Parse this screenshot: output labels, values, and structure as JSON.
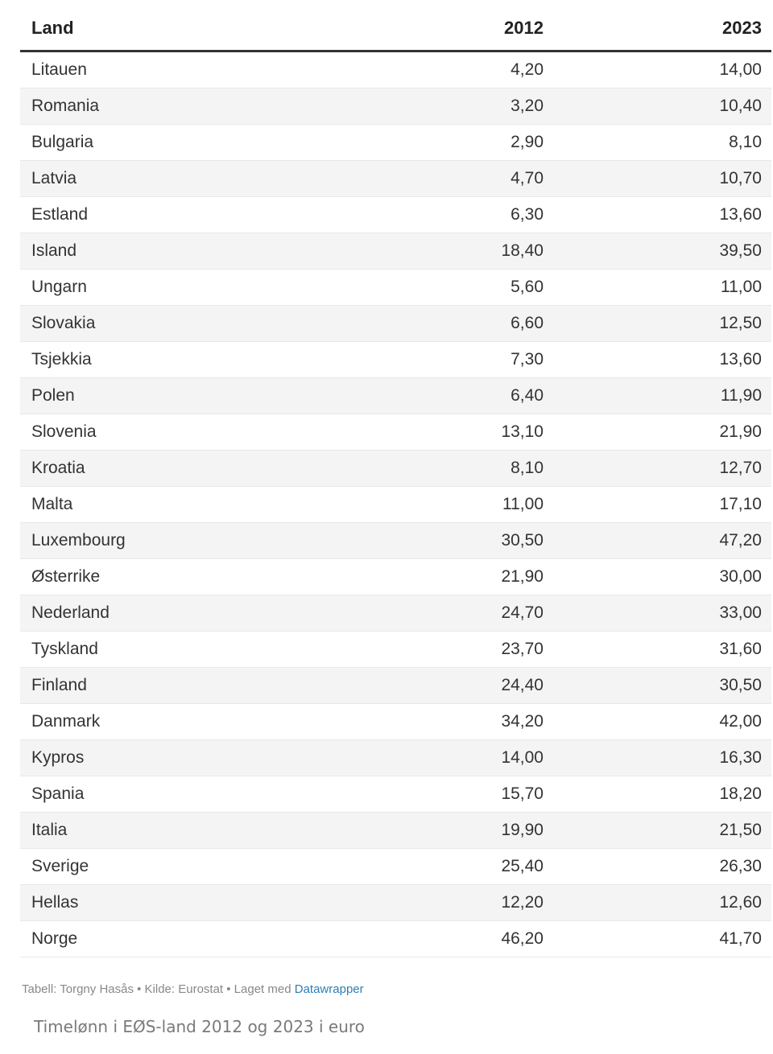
{
  "chart_data": {
    "type": "table",
    "columns": [
      "Land",
      "2012",
      "2023"
    ],
    "rows": [
      [
        "Litauen",
        "4,20",
        "14,00"
      ],
      [
        "Romania",
        "3,20",
        "10,40"
      ],
      [
        "Bulgaria",
        "2,90",
        "8,10"
      ],
      [
        "Latvia",
        "4,70",
        "10,70"
      ],
      [
        "Estland",
        "6,30",
        "13,60"
      ],
      [
        "Island",
        "18,40",
        "39,50"
      ],
      [
        "Ungarn",
        "5,60",
        "11,00"
      ],
      [
        "Slovakia",
        "6,60",
        "12,50"
      ],
      [
        "Tsjekkia",
        "7,30",
        "13,60"
      ],
      [
        "Polen",
        "6,40",
        "11,90"
      ],
      [
        "Slovenia",
        "13,10",
        "21,90"
      ],
      [
        "Kroatia",
        "8,10",
        "12,70"
      ],
      [
        "Malta",
        "11,00",
        "17,10"
      ],
      [
        "Luxembourg",
        "30,50",
        "47,20"
      ],
      [
        "Østerrike",
        "21,90",
        "30,00"
      ],
      [
        "Nederland",
        "24,70",
        "33,00"
      ],
      [
        "Tyskland",
        "23,70",
        "31,60"
      ],
      [
        "Finland",
        "24,40",
        "30,50"
      ],
      [
        "Danmark",
        "34,20",
        "42,00"
      ],
      [
        "Kypros",
        "14,00",
        "16,30"
      ],
      [
        "Spania",
        "15,70",
        "18,20"
      ],
      [
        "Italia",
        "19,90",
        "21,50"
      ],
      [
        "Sverige",
        "25,40",
        "26,30"
      ],
      [
        "Hellas",
        "12,20",
        "12,60"
      ],
      [
        "Norge",
        "46,20",
        "41,70"
      ]
    ]
  },
  "footer": {
    "credit": "Tabell: Torgny Hasås • Kilde: Eurostat • Laget med ",
    "tool": "Datawrapper"
  },
  "caption": "Timelønn i EØS-land 2012 og 2023 i euro",
  "colors": {
    "text": "#333333",
    "stripe": "#f4f4f4",
    "link": "#2c7fb8"
  }
}
